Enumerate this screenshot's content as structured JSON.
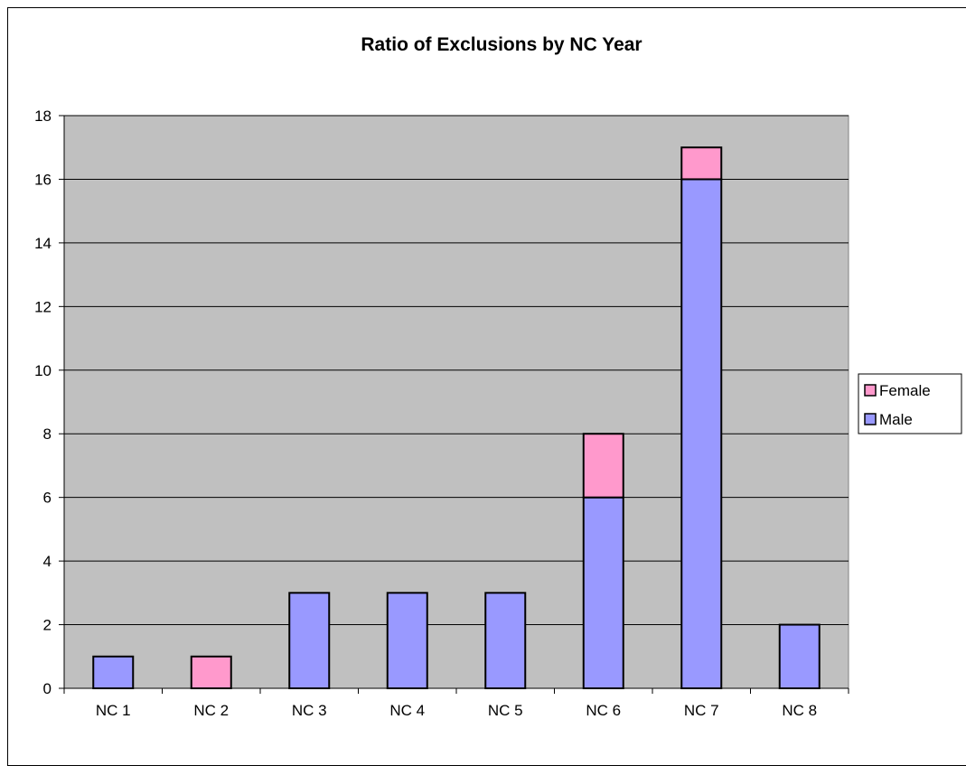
{
  "chart_data": {
    "type": "bar",
    "stacked": true,
    "title": "Ratio of Exclusions by NC Year",
    "xlabel": "",
    "ylabel": "",
    "categories": [
      "NC 1",
      "NC 2",
      "NC 3",
      "NC 4",
      "NC 5",
      "NC 6",
      "NC 7",
      "NC 8"
    ],
    "series": [
      {
        "name": "Male",
        "values": [
          1,
          0,
          3,
          3,
          3,
          6,
          16,
          2
        ],
        "color": "#9999ff"
      },
      {
        "name": "Female",
        "values": [
          0,
          1,
          0,
          0,
          0,
          2,
          1,
          0
        ],
        "color": "#ff99cc"
      }
    ],
    "ylim": [
      0,
      18
    ],
    "yticks": [
      0,
      2,
      4,
      6,
      8,
      10,
      12,
      14,
      16,
      18
    ],
    "grid": true,
    "legend": "right",
    "legend_order": [
      "Female",
      "Male"
    ],
    "plot_background": "#c0c0c0"
  }
}
